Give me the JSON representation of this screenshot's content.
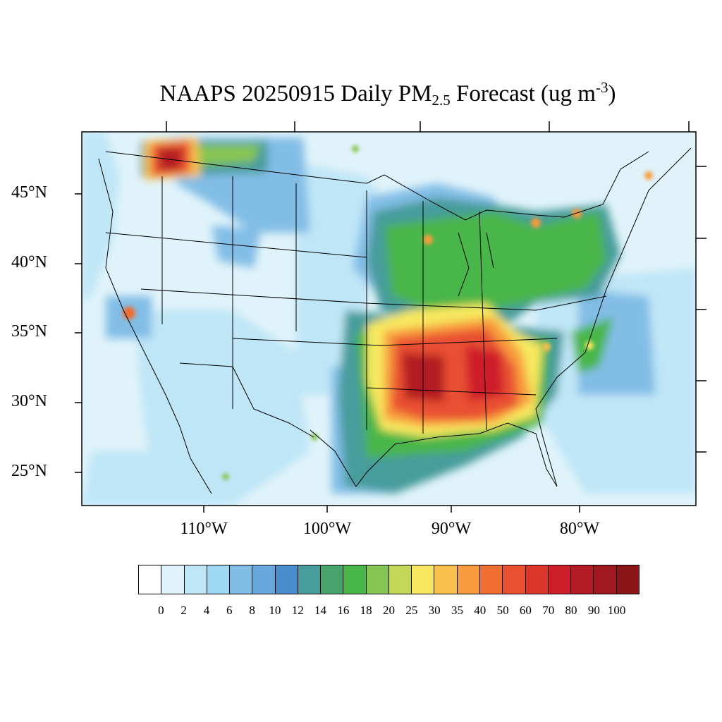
{
  "title": {
    "prefix": "NAAPS 20250915 Daily PM",
    "subscript": "2.5",
    "middle": " Forecast (ug m",
    "superscript": "-3",
    "suffix": ")"
  },
  "map": {
    "lon_range": [
      -119,
      -70
    ],
    "lat_range": [
      23,
      49
    ],
    "lat_labels": [
      "45°N",
      "40°N",
      "35°N",
      "30°N",
      "25°N"
    ],
    "lon_labels": [
      "110°W",
      "100°W",
      "90°W",
      "80°W"
    ],
    "background_color": "#e0f3fa"
  },
  "colorbar": {
    "colors": [
      "#ffffff",
      "#e0f3fa",
      "#bfe6f7",
      "#9fd8f2",
      "#82bde6",
      "#68a8dc",
      "#4a8dcc",
      "#479c9c",
      "#46a46c",
      "#49b649",
      "#86c553",
      "#c3d859",
      "#f7e85f",
      "#f8c14d",
      "#f89b3e",
      "#f16d31",
      "#e95030",
      "#dc362b",
      "#cd1f2a",
      "#b21b23",
      "#a11920",
      "#8c1519"
    ],
    "labels": [
      "0",
      "2",
      "4",
      "6",
      "8",
      "10",
      "12",
      "14",
      "16",
      "18",
      "20",
      "25",
      "30",
      "35",
      "40",
      "50",
      "60",
      "70",
      "80",
      "90",
      "100"
    ]
  }
}
